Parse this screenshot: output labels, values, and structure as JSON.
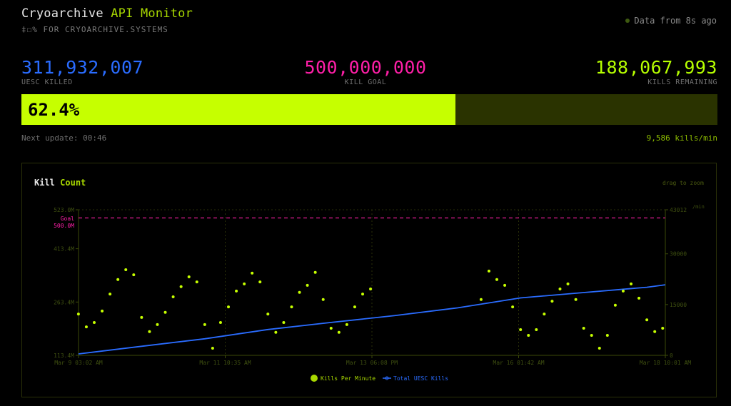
{
  "header": {
    "title_part1": "Cryoarchive",
    "title_part2": "API Monitor",
    "subtitle": "‡☐% FOR CRYOARCHIVE.SYSTEMS",
    "status": "Data from 8s ago"
  },
  "stats": {
    "killed": {
      "value": "311,932,007",
      "label": "UESC KILLED"
    },
    "goal": {
      "value": "500,000,000",
      "label": "KILL GOAL"
    },
    "remaining": {
      "value": "188,067,993",
      "label": "KILLS REMAINING"
    }
  },
  "progress": {
    "percent": 62.4,
    "label": "62.4%"
  },
  "next_update": "Next update: 00:46",
  "rate": "9,586 kills/min",
  "colors": {
    "accent": "#c6ff00",
    "killed": "#2a6cff",
    "goal": "#ff1fa8",
    "bar_bg": "#2a3300"
  },
  "chart": {
    "title_part1": "Kill",
    "title_part2": "Count",
    "hint": "drag to zoom"
  },
  "chart_data": {
    "type": "scatter+line",
    "x_ticks": [
      "Mar 9 03:02 AM",
      "Mar 11 10:35 AM",
      "Mar 13 06:08 PM",
      "Mar 16 01:42 AM",
      "Mar 18 10:01 AM"
    ],
    "x_range": [
      "Mar 9 03:02",
      "Mar 18 10:01"
    ],
    "y_left": {
      "ticks": [
        "113.4M",
        "263.4M",
        "413.4M",
        "523.0M"
      ],
      "range": [
        113.4,
        523.0
      ],
      "unit": "M"
    },
    "y_right": {
      "ticks": [
        "0",
        "15000",
        "30000",
        "43012"
      ],
      "range": [
        0,
        43012
      ],
      "unit": "/min"
    },
    "goal_line": {
      "label": "Goal",
      "value_label": "500.0M",
      "value": 500.0
    },
    "legend": [
      "Kills Per Minute",
      "Total UESC Kills"
    ],
    "kills_per_minute": {
      "start": "Mar 9 03:00",
      "interval_hours": 3,
      "values": [
        12200,
        8400,
        9700,
        13100,
        18100,
        22400,
        25300,
        23800,
        11200,
        7000,
        9100,
        12700,
        17300,
        20300,
        23200,
        21700,
        9100,
        2100,
        9700,
        14300,
        19000,
        21100,
        24300,
        21700,
        12200,
        6800,
        9700,
        14300,
        18600,
        20700,
        24500,
        16500,
        8000,
        6800,
        9100,
        14300,
        18100,
        19600,
        null,
        null,
        null,
        null,
        null,
        null,
        null,
        null,
        null,
        null,
        null,
        null,
        null,
        16500,
        24900,
        22400,
        20700,
        14300,
        7600,
        5900,
        7600,
        12200,
        16000,
        19600,
        21100,
        16500,
        8000,
        5900,
        2100,
        5900,
        14800,
        19000,
        21100,
        16900,
        10500,
        7000,
        8000
      ]
    },
    "total_kills_m": [
      {
        "t": "Mar 9 03:02",
        "v": 117.4
      },
      {
        "t": "Mar 10 03:00",
        "v": 139.0
      },
      {
        "t": "Mar 11 03:00",
        "v": 160.0
      },
      {
        "t": "Mar 12 03:00",
        "v": 186.0
      },
      {
        "t": "Mar 13 03:00",
        "v": 206.0
      },
      {
        "t": "Mar 14 03:00",
        "v": 225.0
      },
      {
        "t": "Mar 15 03:00",
        "v": 247.0
      },
      {
        "t": "Mar 16 03:00",
        "v": 275.0
      },
      {
        "t": "Mar 17 03:00",
        "v": 290.0
      },
      {
        "t": "Mar 18 03:00",
        "v": 305.0
      },
      {
        "t": "Mar 18 10:01",
        "v": 311.9
      }
    ]
  }
}
